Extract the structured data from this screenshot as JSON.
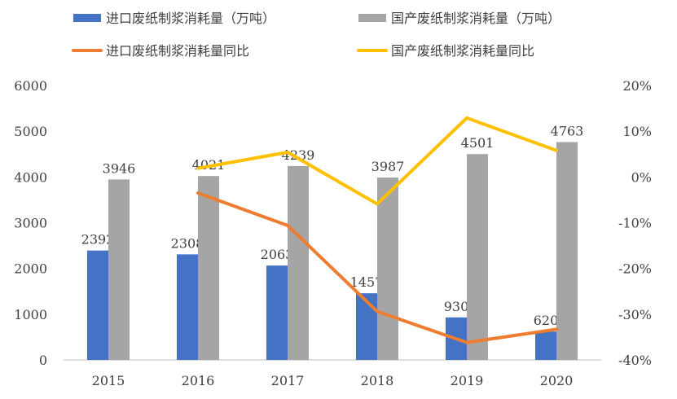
{
  "chart_data": {
    "type": "bar+line",
    "categories": [
      "2015",
      "2016",
      "2017",
      "2018",
      "2019",
      "2020"
    ],
    "series": [
      {
        "name": "进口废纸制浆消耗量（万吨）",
        "type": "bar",
        "axis": "left",
        "color": "#4472C4",
        "values": [
          2392,
          2308,
          2063,
          1457,
          930,
          620
        ],
        "labels": [
          "2392",
          "2308",
          "2063",
          "1457",
          "930",
          "620"
        ]
      },
      {
        "name": "国产废纸制浆消耗量（万吨）",
        "type": "bar",
        "axis": "left",
        "color": "#A5A5A5",
        "values": [
          3946,
          4021,
          4239,
          3987,
          4501,
          4763
        ],
        "labels": [
          "3946",
          "4021",
          "4239",
          "3987",
          "4501",
          "4763"
        ]
      },
      {
        "name": "进口废纸制浆消耗量同比",
        "type": "line",
        "axis": "right",
        "color": "#ED7D31",
        "values": [
          null,
          -3.5,
          -10.6,
          -29.4,
          -36.2,
          -33.3
        ]
      },
      {
        "name": "国产废纸制浆消耗量同比",
        "type": "line",
        "axis": "right",
        "color": "#FFC000",
        "values": [
          null,
          1.9,
          5.4,
          -5.9,
          12.9,
          5.8
        ]
      }
    ],
    "left_axis": {
      "ylim": [
        0,
        6000
      ],
      "ticks": [
        "0",
        "1000",
        "2000",
        "3000",
        "4000",
        "5000",
        "6000"
      ]
    },
    "right_axis": {
      "ylim": [
        -40,
        20
      ],
      "ticks": [
        "-40%",
        "-30%",
        "-20%",
        "-10%",
        "0%",
        "10%",
        "20%"
      ]
    },
    "grid": false,
    "legend": "top"
  }
}
